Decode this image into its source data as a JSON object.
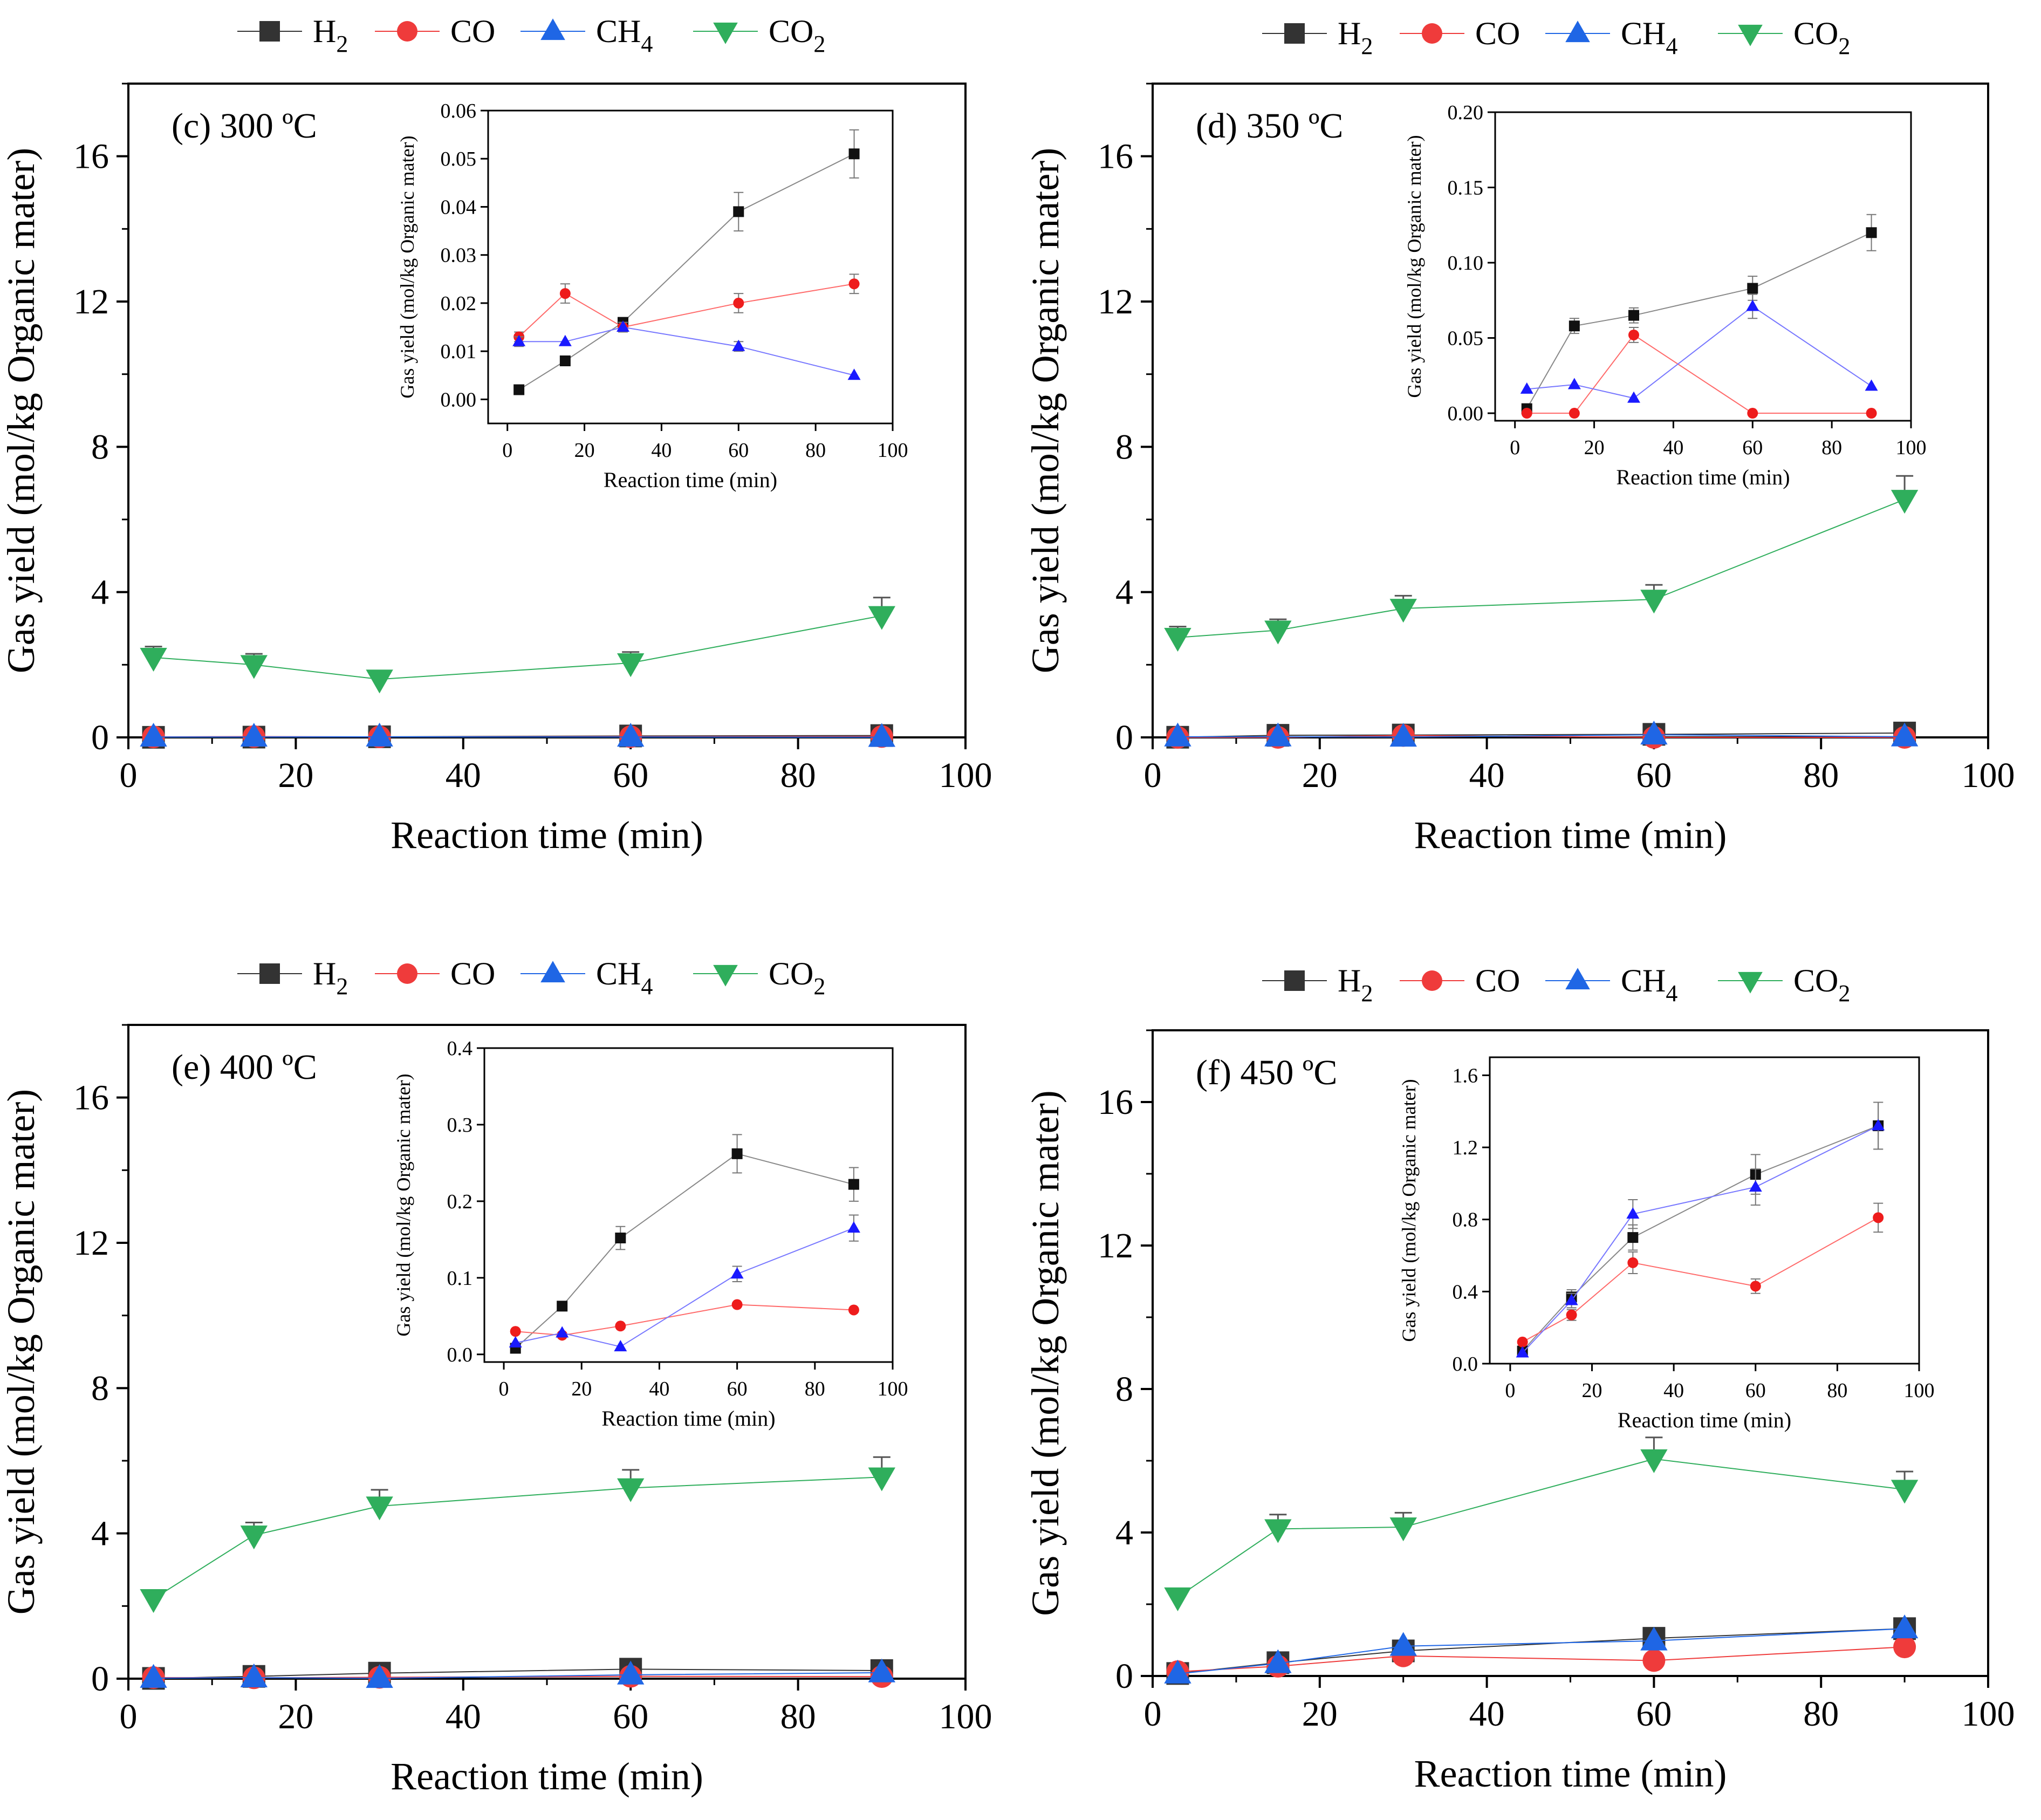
{
  "legend": [
    {
      "name": "H",
      "sub": "2",
      "color": "#333333",
      "marker": "square"
    },
    {
      "name": "CO",
      "sub": "",
      "color": "#ef3b3b",
      "marker": "circle"
    },
    {
      "name": "CH",
      "sub": "4",
      "color": "#1f66e5",
      "marker": "triangle-up"
    },
    {
      "name": "CO",
      "sub": "2",
      "color": "#2fae5c",
      "marker": "triangle-down"
    }
  ],
  "chart_data": [
    {
      "type": "line",
      "panel_label": "(c) 300 ºC",
      "xlabel": "Reaction time (min)",
      "ylabel": "Gas yield (mol/kg Organic mater)",
      "xlim": [
        0,
        100
      ],
      "ylim": [
        0,
        18
      ],
      "xticks": [
        "0",
        "20",
        "40",
        "60",
        "80",
        "100"
      ],
      "yticks": [
        "0",
        "4",
        "8",
        "12",
        "16"
      ],
      "x": [
        3,
        15,
        30,
        60,
        90
      ],
      "series": [
        {
          "name": "H2",
          "values": [
            0.002,
            0.008,
            0.016,
            0.039,
            0.051
          ]
        },
        {
          "name": "CO",
          "values": [
            0.013,
            0.022,
            0.015,
            0.02,
            0.024
          ]
        },
        {
          "name": "CH4",
          "values": [
            0.012,
            0.012,
            0.015,
            0.011,
            0.005
          ]
        },
        {
          "name": "CO2",
          "values": [
            2.2,
            2.0,
            1.6,
            2.05,
            3.35
          ],
          "errors": [
            0.3,
            0.3,
            0.2,
            0.3,
            0.5
          ]
        }
      ],
      "inset": {
        "xlabel": "Reaction time (min)",
        "ylabel": "Gas yield (mol/kg Organic mater)",
        "xlim": [
          -5,
          100
        ],
        "ylim": [
          -0.005,
          0.06
        ],
        "xticks": [
          "0",
          "20",
          "40",
          "60",
          "80",
          "100"
        ],
        "yticks": [
          "0.00",
          "0.01",
          "0.02",
          "0.03",
          "0.04",
          "0.05",
          "0.06"
        ],
        "series": [
          {
            "name": "H2",
            "values": [
              0.002,
              0.008,
              0.016,
              0.039,
              0.051
            ],
            "errors": [
              0,
              0,
              0.001,
              0.004,
              0.005
            ]
          },
          {
            "name": "CO",
            "values": [
              0.013,
              0.022,
              0.015,
              0.02,
              0.024
            ],
            "errors": [
              0.001,
              0.002,
              0.001,
              0.002,
              0.002
            ]
          },
          {
            "name": "CH4",
            "values": [
              0.012,
              0.012,
              0.015,
              0.011,
              0.005
            ],
            "errors": [
              0.001,
              0,
              0.001,
              0.001,
              0
            ]
          }
        ]
      }
    },
    {
      "type": "line",
      "panel_label": "(d) 350 ºC",
      "xlabel": "Reaction time (min)",
      "ylabel": "Gas yield (mol/kg Organic mater)",
      "xlim": [
        0,
        100
      ],
      "ylim": [
        0,
        18
      ],
      "xticks": [
        "0",
        "20",
        "40",
        "60",
        "80",
        "100"
      ],
      "yticks": [
        "0",
        "4",
        "8",
        "12",
        "16"
      ],
      "x": [
        3,
        15,
        30,
        60,
        90
      ],
      "series": [
        {
          "name": "H2",
          "values": [
            0.003,
            0.058,
            0.065,
            0.083,
            0.12
          ]
        },
        {
          "name": "CO",
          "values": [
            0.0,
            0.0,
            0.052,
            0.0,
            0.0
          ]
        },
        {
          "name": "CH4",
          "values": [
            0.016,
            0.019,
            0.01,
            0.071,
            0.018
          ]
        },
        {
          "name": "CO2",
          "values": [
            2.75,
            2.95,
            3.55,
            3.8,
            6.55
          ],
          "errors": [
            0.3,
            0.3,
            0.35,
            0.4,
            0.65
          ]
        }
      ],
      "inset": {
        "xlabel": "Reaction time (min)",
        "ylabel": "Gas yield (mol/kg Organic mater)",
        "xlim": [
          -5,
          100
        ],
        "ylim": [
          -0.005,
          0.2
        ],
        "xticks": [
          "0",
          "20",
          "40",
          "60",
          "80",
          "100"
        ],
        "yticks": [
          "0.00",
          "0.05",
          "0.10",
          "0.15",
          "0.20"
        ],
        "series": [
          {
            "name": "H2",
            "values": [
              0.003,
              0.058,
              0.065,
              0.083,
              0.12
            ],
            "errors": [
              0.002,
              0.005,
              0.005,
              0.008,
              0.012
            ]
          },
          {
            "name": "CO",
            "values": [
              0.0,
              0.0,
              0.052,
              0.0,
              0.0
            ],
            "errors": [
              0,
              0,
              0.005,
              0,
              0
            ]
          },
          {
            "name": "CH4",
            "values": [
              0.016,
              0.019,
              0.01,
              0.071,
              0.018
            ],
            "errors": [
              0,
              0,
              0,
              0.008,
              0
            ]
          }
        ]
      }
    },
    {
      "type": "line",
      "panel_label": "(e) 400 ºC",
      "xlabel": "Reaction time (min)",
      "ylabel": "Gas yield (mol/kg Organic mater)",
      "xlim": [
        0,
        100
      ],
      "ylim": [
        0,
        18
      ],
      "xticks": [
        "0",
        "20",
        "40",
        "60",
        "80",
        "100"
      ],
      "yticks": [
        "0",
        "4",
        "8",
        "12",
        "16"
      ],
      "x": [
        3,
        15,
        30,
        60,
        90
      ],
      "series": [
        {
          "name": "H2",
          "values": [
            0.008,
            0.063,
            0.152,
            0.262,
            0.222
          ]
        },
        {
          "name": "CO",
          "values": [
            0.03,
            0.025,
            0.037,
            0.065,
            0.058
          ]
        },
        {
          "name": "CH4",
          "values": [
            0.015,
            0.028,
            0.01,
            0.105,
            0.165
          ]
        },
        {
          "name": "CO2",
          "values": [
            2.2,
            3.95,
            4.75,
            5.25,
            5.55
          ],
          "errors": [
            0.2,
            0.35,
            0.45,
            0.5,
            0.55
          ]
        }
      ],
      "inset": {
        "xlabel": "Reaction time (min)",
        "ylabel": "Gas yield (mol/kg Organic mater)",
        "xlim": [
          -5,
          100
        ],
        "ylim": [
          -0.01,
          0.4
        ],
        "xticks": [
          "0",
          "20",
          "40",
          "60",
          "80",
          "100"
        ],
        "yticks": [
          "0.0",
          "0.1",
          "0.2",
          "0.3",
          "0.4"
        ],
        "series": [
          {
            "name": "H2",
            "values": [
              0.008,
              0.063,
              0.152,
              0.262,
              0.222
            ],
            "errors": [
              0,
              0,
              0.015,
              0.025,
              0.022
            ]
          },
          {
            "name": "CO",
            "values": [
              0.03,
              0.025,
              0.037,
              0.065,
              0.058
            ],
            "errors": [
              0,
              0,
              0,
              0,
              0
            ]
          },
          {
            "name": "CH4",
            "values": [
              0.015,
              0.028,
              0.01,
              0.105,
              0.165
            ],
            "errors": [
              0,
              0,
              0,
              0.01,
              0.017
            ]
          }
        ]
      }
    },
    {
      "type": "line",
      "panel_label": "(f) 450 ºC",
      "xlabel": "Reaction time (min)",
      "ylabel": "Gas yield (mol/kg Organic mater)",
      "xlim": [
        0,
        100
      ],
      "ylim": [
        0,
        18
      ],
      "xticks": [
        "0",
        "20",
        "40",
        "60",
        "80",
        "100"
      ],
      "yticks": [
        "0",
        "4",
        "8",
        "12",
        "16"
      ],
      "x": [
        3,
        15,
        30,
        60,
        90
      ],
      "series": [
        {
          "name": "H2",
          "values": [
            0.07,
            0.37,
            0.7,
            1.05,
            1.32
          ]
        },
        {
          "name": "CO",
          "values": [
            0.12,
            0.27,
            0.56,
            0.43,
            0.81
          ]
        },
        {
          "name": "CH4",
          "values": [
            0.06,
            0.35,
            0.83,
            0.98,
            1.32
          ]
        },
        {
          "name": "CO2",
          "values": [
            2.2,
            4.1,
            4.15,
            6.05,
            5.2
          ],
          "errors": [
            0.2,
            0.4,
            0.4,
            0.6,
            0.5
          ]
        }
      ],
      "inset": {
        "xlabel": "Reaction time (min)",
        "ylabel": "Gas yield (mol/kg Organic mater)",
        "xlim": [
          -5,
          100
        ],
        "ylim": [
          0,
          1.7
        ],
        "xticks": [
          "0",
          "20",
          "40",
          "60",
          "80",
          "100"
        ],
        "yticks": [
          "0.0",
          "0.4",
          "0.8",
          "1.2",
          "1.6"
        ],
        "series": [
          {
            "name": "H2",
            "values": [
              0.07,
              0.37,
              0.7,
              1.05,
              1.32
            ],
            "errors": [
              0,
              0.04,
              0.07,
              0.11,
              0.13
            ]
          },
          {
            "name": "CO",
            "values": [
              0.12,
              0.27,
              0.56,
              0.43,
              0.81
            ],
            "errors": [
              0,
              0.03,
              0.06,
              0.04,
              0.08
            ]
          },
          {
            "name": "CH4",
            "values": [
              0.06,
              0.35,
              0.83,
              0.98,
              1.32
            ],
            "errors": [
              0,
              0.04,
              0.08,
              0.1,
              0.13
            ]
          }
        ]
      }
    }
  ]
}
